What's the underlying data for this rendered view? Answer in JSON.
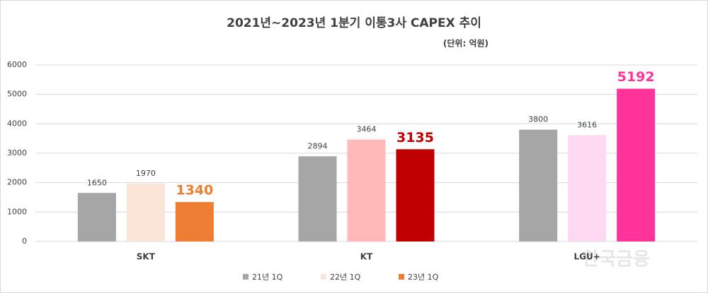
{
  "chart_data": {
    "type": "bar",
    "title": "2021년~2023년 1분기 이통3사 CAPEX 추이",
    "subtitle": "(단위: 억원)",
    "watermark": "한국금융",
    "categories": [
      "SKT",
      "KT",
      "LGU+"
    ],
    "series": [
      {
        "name": "21년 1Q",
        "color": "#a6a6a6",
        "colors": [
          "#a6a6a6",
          "#a6a6a6",
          "#a6a6a6"
        ],
        "values": [
          1650,
          2894,
          3800
        ]
      },
      {
        "name": "22년 1Q",
        "color": "#fbe5d6",
        "colors": [
          "#fbe5d6",
          "#ffb9b9",
          "#fcd9f0"
        ],
        "values": [
          1970,
          3464,
          3616
        ]
      },
      {
        "name": "23년 1Q",
        "color": "#ed7d31",
        "colors": [
          "#ed7d31",
          "#c00000",
          "#ff3399"
        ],
        "values": [
          1340,
          3135,
          5192
        ],
        "bold_labels": true
      }
    ],
    "ylim": [
      0,
      6000
    ],
    "yticks": [
      0,
      1000,
      2000,
      3000,
      4000,
      5000,
      6000
    ],
    "grid": true,
    "legend": "bottom"
  }
}
